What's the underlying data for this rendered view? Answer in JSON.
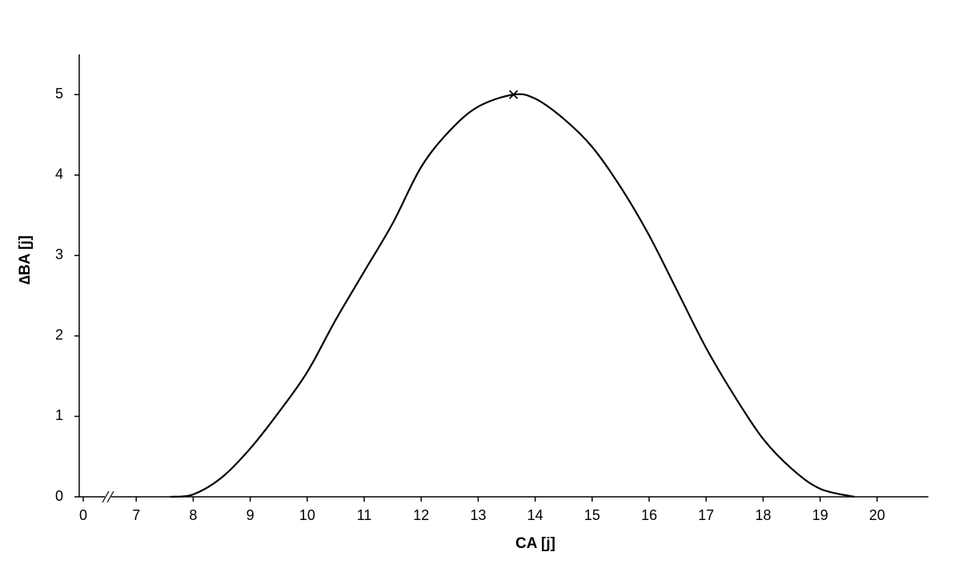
{
  "chart_data": {
    "type": "line",
    "x_label": "CA [j]",
    "y_label": "∆BA [j]",
    "x": [
      7.6,
      8,
      8.5,
      9,
      9.5,
      10,
      10.5,
      11,
      11.5,
      12,
      12.5,
      13,
      13.62,
      14,
      14.5,
      15,
      15.5,
      16,
      16.5,
      17,
      17.5,
      18,
      18.5,
      19,
      19.6
    ],
    "series": [
      {
        "color": "#000000",
        "values": [
          0,
          0.03,
          0.24,
          0.6,
          1.05,
          1.55,
          2.2,
          2.8,
          3.4,
          4.1,
          4.55,
          4.85,
          5,
          4.95,
          4.7,
          4.35,
          3.85,
          3.25,
          2.55,
          1.85,
          1.25,
          0.72,
          0.35,
          0.1,
          0
        ]
      }
    ],
    "peak_marker": {
      "x": 13.62,
      "y": 5
    },
    "xlim": [
      6,
      20.9
    ],
    "xticks": [
      0,
      7,
      8,
      9,
      10,
      11,
      12,
      13,
      14,
      15,
      16,
      17,
      18,
      19,
      20
    ],
    "x_axis_break": true,
    "ylim": [
      0,
      5.5
    ],
    "yticks": [
      0,
      1,
      2,
      3,
      4,
      5
    ]
  }
}
